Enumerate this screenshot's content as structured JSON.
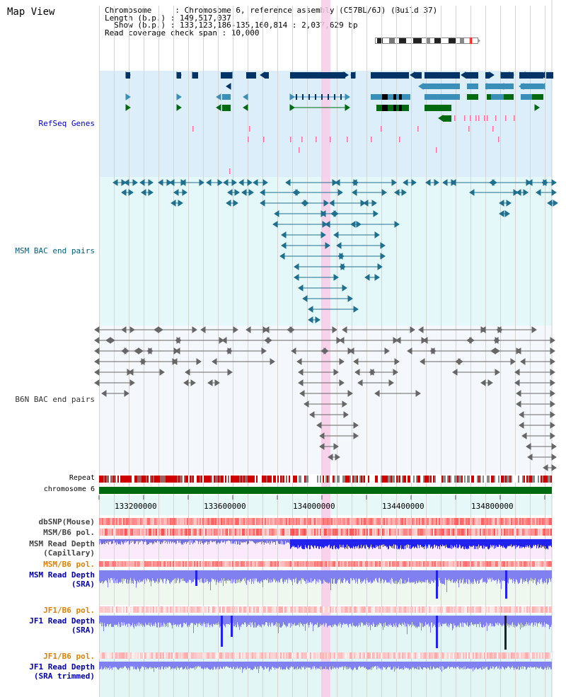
{
  "view_title": "Map View",
  "header": {
    "line1": "Chromosome     : Chromosome 6, reference assembly (C57BL/6J) (Build 37)",
    "line2": "Length (b.p.) : 149,517,037",
    "line3": "  Show (b.p.) : 133,123,186-135,160,814 : 2,037,629 bp",
    "line4": "Read coverage check span : 10,000"
  },
  "tracks": {
    "refseq": "RefSeq Genes",
    "msm_bac": "MSM BAC end pairs",
    "b6n_bac": "B6N BAC end pairs",
    "repeat": "Repeat",
    "chromosome": "chromosome 6",
    "dbsnp": "dbSNP(Mouse)",
    "msm_b6_pol_1": "MSM/B6 pol.",
    "msm_depth_cap_1": "MSM Read Depth",
    "msm_depth_cap_2": "(Capillary)",
    "msm_b6_pol_2": "MSM/B6 pol.",
    "msm_depth_sra_1": "MSM Read Depth",
    "msm_depth_sra_2": "(SRA)",
    "jf1_b6_pol_1": "JF1/B6 pol.",
    "jf1_depth_sra_1": "JF1 Read Depth",
    "jf1_depth_sra_2": "(SRA)",
    "jf1_b6_pol_2": "JF1/B6 pol.",
    "jf1_depth_trim_1": "JF1 Read Depth",
    "jf1_depth_trim_2": "(SRA trimmed)"
  },
  "axis": {
    "ticks": [
      "133200000",
      "133600000",
      "134000000",
      "134400000",
      "134800000"
    ]
  },
  "colors": {
    "refseq_bg": "#dbeefa",
    "msm_bg": "#e4f8fa",
    "b6n_bg": "#f4f7fb",
    "highlight": "#f7cce8",
    "gene_dark": "#003366",
    "gene_mid": "#3a8fb8",
    "gene_green": "#006a10",
    "chrom_green": "#006a10",
    "depth_blue": "#2222ee",
    "depth_light": "#8080f0"
  }
}
